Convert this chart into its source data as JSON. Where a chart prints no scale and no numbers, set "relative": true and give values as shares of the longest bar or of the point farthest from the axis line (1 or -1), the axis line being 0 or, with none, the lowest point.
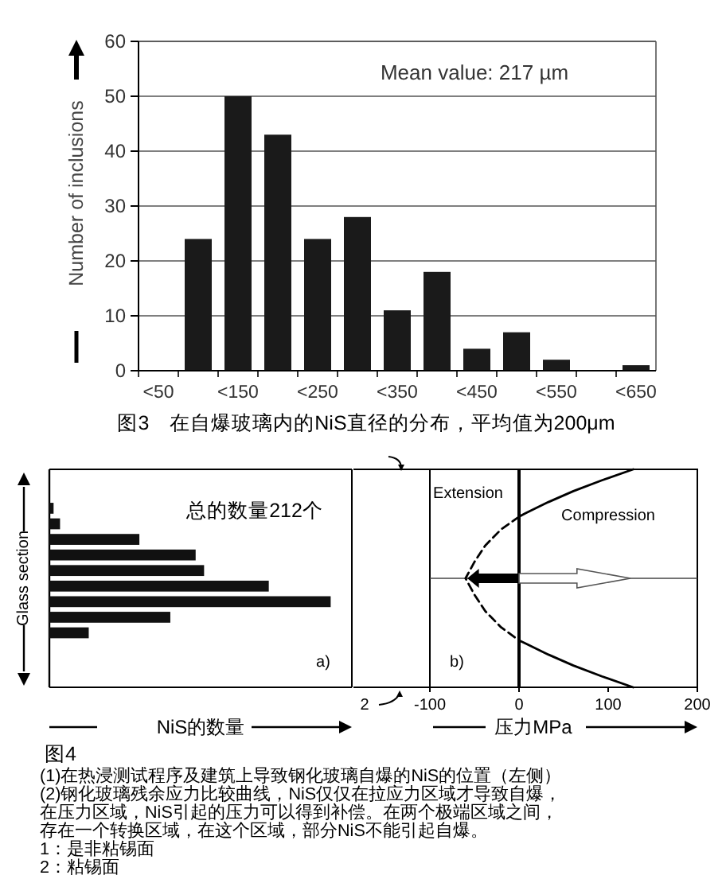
{
  "chart_data": [
    {
      "type": "bar",
      "ylabel": "Number of inclusions",
      "categories": [
        "<50",
        null,
        "<150",
        null,
        "<250",
        null,
        "<350",
        null,
        "<450",
        null,
        "<550",
        null,
        "<650"
      ],
      "values": [
        0,
        24,
        50,
        43,
        24,
        28,
        11,
        18,
        4,
        7,
        2,
        0,
        1
      ],
      "color": "#1a1a1a",
      "ylim": [
        0,
        60
      ],
      "yticks": [
        0,
        10,
        20,
        30,
        40,
        50,
        60
      ],
      "grid": "y",
      "annotations": [
        "Mean value: 217 µm",
        "图3　在自爆玻璃内的NiS直径的分布，平均值为200μm"
      ]
    },
    {
      "type": "bar",
      "orientation": "horizontal",
      "relative": true,
      "xlabel": "NiS的数量",
      "ylabel": "Glass section",
      "categories": [
        null,
        null,
        null,
        null,
        null,
        null,
        null,
        null,
        null
      ],
      "values": [
        0.015,
        0.038,
        0.32,
        0.52,
        0.55,
        0.78,
        1,
        0.43,
        0.14
      ],
      "color": "#111111",
      "annotations": [
        "总的数量212个",
        "a)"
      ]
    },
    {
      "type": "line",
      "relative": true,
      "xlabel": "压力MPa",
      "xlim": [
        -100,
        200
      ],
      "xticks": [
        -100,
        0,
        100,
        200
      ],
      "series": [
        {
          "color": "#000000",
          "line_style": "solid",
          "x": [
            128,
            93,
            61,
            33,
            8,
            0
          ],
          "values": [
            1,
            0.9,
            0.8,
            0.7,
            0.6,
            0.565
          ]
        },
        {
          "color": "#000000",
          "line_style": "dashed",
          "x": [
            0,
            -20,
            -38,
            -50,
            -60,
            -50,
            -38,
            -20,
            0
          ],
          "values": [
            0.565,
            0.45,
            0.3,
            0.15,
            0,
            -0.15,
            -0.3,
            -0.45,
            -0.57
          ]
        },
        {
          "color": "#000000",
          "line_style": "solid",
          "x": [
            0,
            8,
            33,
            61,
            93,
            128
          ],
          "values": [
            -0.57,
            -0.6,
            -0.7,
            -0.8,
            -0.9,
            -1
          ]
        }
      ],
      "ref_lines": [
        {
          "axis": "x",
          "value": 0,
          "color": "#000000"
        },
        {
          "axis": "y",
          "value": 0,
          "color": "#444444"
        }
      ],
      "annotations": [
        "Extension",
        "Compression",
        "b)",
        "2",
        "图4",
        "(1)在热浸测试程序及建筑上导致钢化玻璃自爆的NiS的位置（左侧）",
        "(2)钢化玻璃残余应力比较曲线，NiS仅仅在拉应力区域才导致自爆，",
        "在压力区域，NiS引起的压力可以得到补偿。在两个极端区域之间，",
        "存在一个转换区域，在这个区域，部分NiS不能引起自爆。",
        "1：是非粘锡面",
        "2：粘锡面"
      ]
    }
  ]
}
